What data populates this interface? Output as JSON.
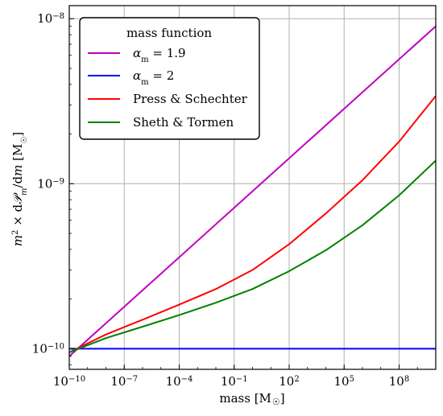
{
  "chart_data": {
    "type": "line",
    "xscale": "log",
    "yscale": "log",
    "xlim": [
      1e-10,
      10000000000.0
    ],
    "ylim": [
      7.5e-11,
      1.2e-08
    ],
    "grid": true,
    "xlabel_main": "mass ",
    "xlabel_unit": "[M",
    "xlabel_unit_close": "]",
    "ylabel_parts": {
      "m": "m",
      "sq": "2",
      "times": " × d",
      "P": "𝒫",
      "sub": "m",
      "slash": "/d",
      "m2": "m",
      "unit": " [M",
      "unit_close": "]"
    },
    "x_ticks": [
      {
        "value": 1e-10,
        "base": "10",
        "exp": "−10"
      },
      {
        "value": 1e-07,
        "base": "10",
        "exp": "−7"
      },
      {
        "value": 0.0001,
        "base": "10",
        "exp": "−4"
      },
      {
        "value": 0.1,
        "base": "10",
        "exp": "−1"
      },
      {
        "value": 100.0,
        "base": "10",
        "exp": "2"
      },
      {
        "value": 100000.0,
        "base": "10",
        "exp": "5"
      },
      {
        "value": 100000000.0,
        "base": "10",
        "exp": "8"
      }
    ],
    "y_ticks": [
      {
        "value": 1e-10,
        "base": "10",
        "exp": "−10"
      },
      {
        "value": 1e-09,
        "base": "10",
        "exp": "−9"
      },
      {
        "value": 1e-08,
        "base": "10",
        "exp": "−8"
      }
    ],
    "legend": {
      "title": "mass function",
      "location": "top-left"
    },
    "series": [
      {
        "name": "αm = 1.9",
        "label_parts": {
          "alpha": "α",
          "sub": "m",
          "rest": " = 1.9"
        },
        "color": "#bf00bf",
        "x": [
          1e-10,
          10000000000.0
        ],
        "y": [
          9e-11,
          9e-09
        ]
      },
      {
        "name": "αm = 2",
        "label_parts": {
          "alpha": "α",
          "sub": "m",
          "rest": " = 2"
        },
        "color": "#0000ff",
        "x": [
          1e-10,
          10000000000.0
        ],
        "y": [
          1e-10,
          1e-10
        ]
      },
      {
        "name": "Press & Schechter",
        "color": "#ff0000",
        "x": [
          1e-10,
          1e-08,
          1e-06,
          0.0001,
          0.01,
          1,
          100.0,
          10000.0,
          1000000.0,
          100000000.0,
          10000000000.0
        ],
        "y": [
          9.5e-11,
          1.22e-10,
          1.5e-10,
          1.85e-10,
          2.3e-10,
          3e-10,
          4.3e-10,
          6.6e-10,
          1.05e-09,
          1.8e-09,
          3.4e-09
        ]
      },
      {
        "name": "Sheth & Tormen",
        "color": "#008000",
        "x": [
          1e-10,
          1e-08,
          1e-06,
          0.0001,
          0.01,
          1,
          100.0,
          10000.0,
          1000000.0,
          100000000.0,
          10000000000.0
        ],
        "y": [
          9.5e-11,
          1.16e-10,
          1.36e-10,
          1.6e-10,
          1.9e-10,
          2.3e-10,
          2.95e-10,
          3.95e-10,
          5.6e-10,
          8.5e-10,
          1.38e-09
        ]
      }
    ]
  },
  "colors": {
    "grid": "#b0b0b0",
    "axes": "#000000",
    "background": "#ffffff"
  }
}
